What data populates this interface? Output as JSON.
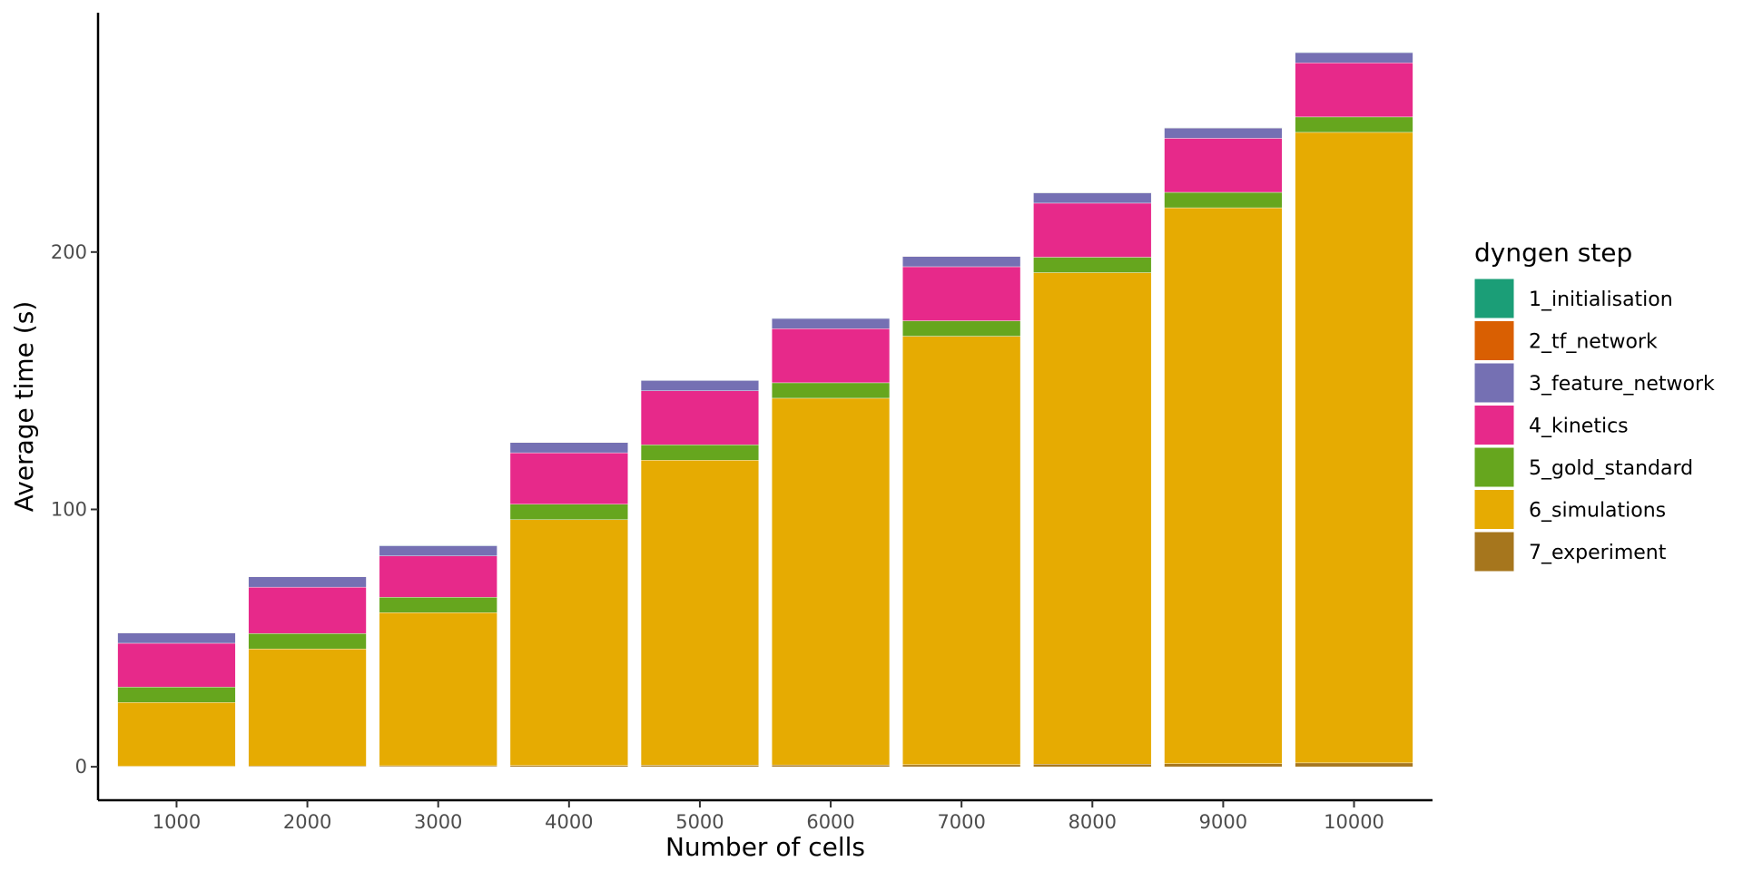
{
  "chart_data": {
    "type": "bar",
    "stacked": true,
    "xlabel": "Number of cells",
    "ylabel": "Average time (s)",
    "categories": [
      "1000",
      "2000",
      "3000",
      "4000",
      "5000",
      "6000",
      "7000",
      "8000",
      "9000",
      "10000"
    ],
    "ylim": [
      -13,
      293
    ],
    "yticks": [
      0,
      100,
      200
    ],
    "grid": false,
    "legend": {
      "title": "dyngen step",
      "placement": "right"
    },
    "series": [
      {
        "name": "1_initialisation",
        "color": "#1b9e77",
        "values": [
          0.1,
          0.1,
          0.1,
          0.1,
          0.1,
          0.1,
          0.1,
          0.1,
          0.1,
          0.1
        ]
      },
      {
        "name": "2_tf_network",
        "color": "#d95f02",
        "values": [
          0.1,
          0.1,
          0.1,
          0.1,
          0.1,
          0.1,
          0.1,
          0.1,
          0.1,
          0.1
        ]
      },
      {
        "name": "3_feature_network",
        "color": "#7570b3",
        "values": [
          4,
          4,
          4,
          4,
          4,
          4,
          4,
          4,
          4,
          4
        ]
      },
      {
        "name": "4_kinetics",
        "color": "#e7298a",
        "values": [
          17,
          18,
          16,
          20,
          21,
          21,
          21,
          21,
          21,
          21
        ]
      },
      {
        "name": "5_gold_standard",
        "color": "#66a61e",
        "values": [
          6,
          6,
          6,
          6,
          6,
          6,
          6,
          6,
          6,
          6
        ]
      },
      {
        "name": "6_simulations",
        "color": "#e6ab02",
        "values": [
          24.8,
          45.5,
          59.5,
          95.5,
          118.5,
          142.5,
          166.5,
          191,
          216,
          245
        ]
      },
      {
        "name": "7_experiment",
        "color": "#a6761d",
        "values": [
          0.2,
          0.3,
          0.4,
          0.5,
          0.6,
          0.7,
          0.8,
          1.0,
          1.2,
          1.5
        ]
      }
    ]
  }
}
